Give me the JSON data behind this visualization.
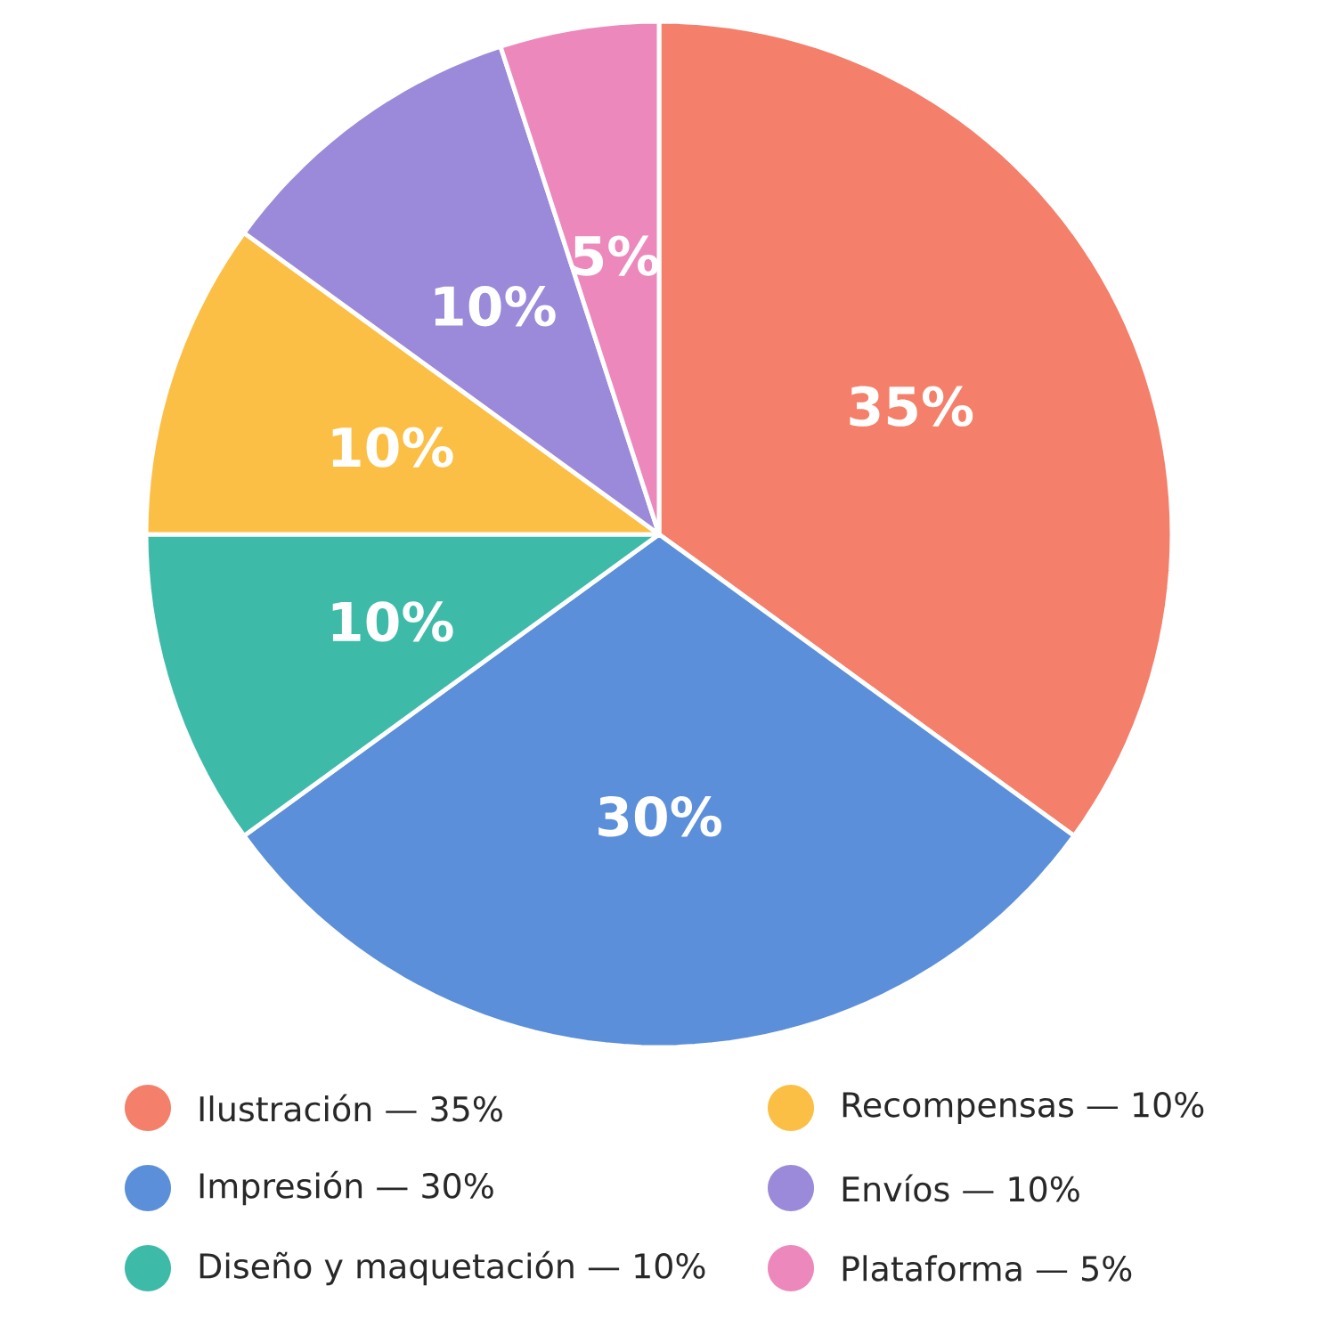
{
  "chart_data": {
    "type": "pie",
    "categories": [
      "Ilustración — 35%",
      "Impresión — 30%",
      "Diseño y maquetación — 10%",
      "Recompensas — 10%",
      "Envíos — 10%",
      "Plataforma — 5%"
    ],
    "values": [
      35,
      30,
      10,
      10,
      10,
      5
    ],
    "value_labels": [
      "35%",
      "30%",
      "10%",
      "10%",
      "10%",
      "5%"
    ],
    "colors": [
      "#f47f6a",
      "#5b8fd9",
      "#3dbaa8",
      "#fbbf45",
      "#9b89d9",
      "#ec88bb"
    ],
    "legend": "bottom"
  }
}
